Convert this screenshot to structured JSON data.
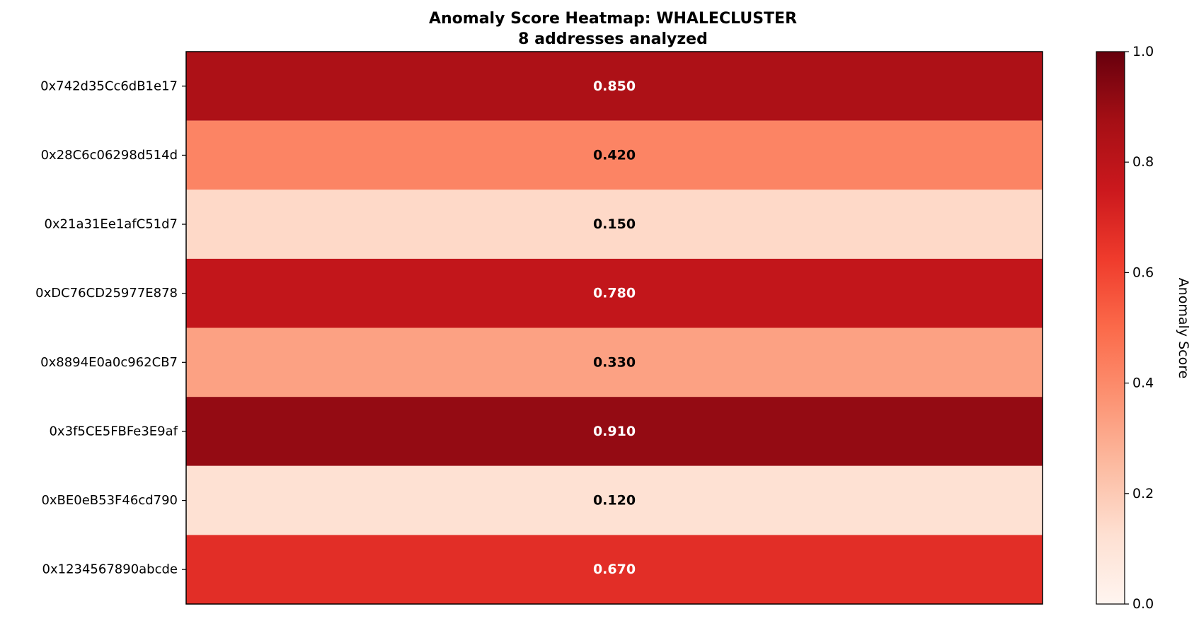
{
  "chart_data": {
    "type": "heatmap",
    "title": "Anomaly Score Heatmap: WHALECLUSTER",
    "subtitle": "8 addresses analyzed",
    "rows": [
      "0x742d35Cc6dB1e17",
      "0x28C6c06298d514d",
      "0x21a31Ee1afC51d7",
      "0xDC76CD25977E878",
      "0x8894E0a0c962CB7",
      "0x3f5CE5FBFe3E9af",
      "0xBE0eB53F46cd790",
      "0x1234567890abcde"
    ],
    "values": [
      0.85,
      0.42,
      0.15,
      0.78,
      0.33,
      0.91,
      0.12,
      0.67
    ],
    "value_labels": [
      "0.850",
      "0.420",
      "0.150",
      "0.780",
      "0.330",
      "0.910",
      "0.120",
      "0.670"
    ],
    "colormap": "Reds",
    "vmin": 0.0,
    "vmax": 1.0,
    "colorbar": {
      "label": "Anomaly Score",
      "ticks": [
        0.0,
        0.2,
        0.4,
        0.6,
        0.8,
        1.0
      ],
      "tick_labels": [
        "0.0",
        "0.2",
        "0.4",
        "0.6",
        "0.8",
        "1.0"
      ]
    },
    "colors": {
      "light_text": "#ffffff",
      "dark_text": "#000000"
    }
  }
}
